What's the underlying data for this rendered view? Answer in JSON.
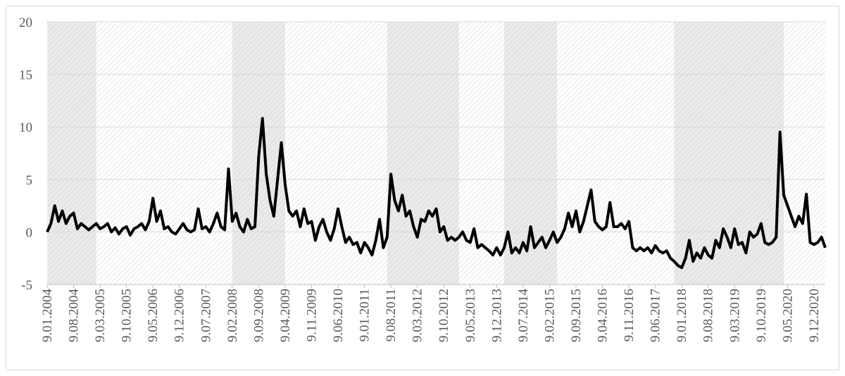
{
  "chart_data": {
    "type": "line",
    "x": [
      "9.01.2004",
      "9.02.2004",
      "9.03.2004",
      "9.04.2004",
      "9.05.2004",
      "9.06.2004",
      "9.07.2004",
      "9.08.2004",
      "9.09.2004",
      "9.10.2004",
      "9.11.2004",
      "9.12.2004",
      "9.01.2005",
      "9.02.2005",
      "9.03.2005",
      "9.04.2005",
      "9.05.2005",
      "9.06.2005",
      "9.07.2005",
      "9.08.2005",
      "9.09.2005",
      "9.10.2005",
      "9.11.2005",
      "9.12.2005",
      "9.01.2006",
      "9.02.2006",
      "9.03.2006",
      "9.04.2006",
      "9.05.2006",
      "9.06.2006",
      "9.07.2006",
      "9.08.2006",
      "9.09.2006",
      "9.10.2006",
      "9.11.2006",
      "9.12.2006",
      "9.01.2007",
      "9.02.2007",
      "9.03.2007",
      "9.04.2007",
      "9.05.2007",
      "9.06.2007",
      "9.07.2007",
      "9.08.2007",
      "9.09.2007",
      "9.10.2007",
      "9.11.2007",
      "9.12.2007",
      "9.01.2008",
      "9.02.2008",
      "9.03.2008",
      "9.04.2008",
      "9.05.2008",
      "9.06.2008",
      "9.07.2008",
      "9.08.2008",
      "9.09.2008",
      "9.10.2008",
      "9.11.2008",
      "9.12.2008",
      "9.01.2009",
      "9.02.2009",
      "9.03.2009",
      "9.04.2009",
      "9.05.2009",
      "9.06.2009",
      "9.07.2009",
      "9.08.2009",
      "9.09.2009",
      "9.10.2009",
      "9.11.2009",
      "9.12.2009",
      "9.01.2010",
      "9.02.2010",
      "9.03.2010",
      "9.04.2010",
      "9.05.2010",
      "9.06.2010",
      "9.07.2010",
      "9.08.2010",
      "9.09.2010",
      "9.10.2010",
      "9.11.2010",
      "9.12.2010",
      "9.01.2011",
      "9.02.2011",
      "9.03.2011",
      "9.04.2011",
      "9.05.2011",
      "9.06.2011",
      "9.07.2011",
      "9.08.2011",
      "9.09.2011",
      "9.10.2011",
      "9.11.2011",
      "9.12.2011",
      "9.01.2012",
      "9.02.2012",
      "9.03.2012",
      "9.04.2012",
      "9.05.2012",
      "9.06.2012",
      "9.07.2012",
      "9.08.2012",
      "9.09.2012",
      "9.10.2012",
      "9.11.2012",
      "9.12.2012",
      "9.01.2013",
      "9.02.2013",
      "9.03.2013",
      "9.04.2013",
      "9.05.2013",
      "9.06.2013",
      "9.07.2013",
      "9.08.2013",
      "9.09.2013",
      "9.10.2013",
      "9.11.2013",
      "9.12.2013",
      "9.01.2014",
      "9.02.2014",
      "9.03.2014",
      "9.04.2014",
      "9.05.2014",
      "9.06.2014",
      "9.07.2014",
      "9.08.2014",
      "9.09.2014",
      "9.10.2014",
      "9.11.2014",
      "9.12.2014",
      "9.01.2015",
      "9.02.2015",
      "9.03.2015",
      "9.04.2015",
      "9.05.2015",
      "9.06.2015",
      "9.07.2015",
      "9.08.2015",
      "9.09.2015",
      "9.10.2015",
      "9.11.2015",
      "9.12.2015",
      "9.01.2016",
      "9.02.2016",
      "9.03.2016",
      "9.04.2016",
      "9.05.2016",
      "9.06.2016",
      "9.07.2016",
      "9.08.2016",
      "9.09.2016",
      "9.10.2016",
      "9.11.2016",
      "9.12.2016",
      "9.01.2017",
      "9.02.2017",
      "9.03.2017",
      "9.04.2017",
      "9.05.2017",
      "9.06.2017",
      "9.07.2017",
      "9.08.2017",
      "9.09.2017",
      "9.10.2017",
      "9.11.2017",
      "9.12.2017",
      "9.01.2018",
      "9.02.2018",
      "9.03.2018",
      "9.04.2018",
      "9.05.2018",
      "9.06.2018",
      "9.07.2018",
      "9.08.2018",
      "9.09.2018",
      "9.10.2018",
      "9.11.2018",
      "9.12.2018",
      "9.01.2019",
      "9.02.2019",
      "9.03.2019",
      "9.04.2019",
      "9.05.2019",
      "9.06.2019",
      "9.07.2019",
      "9.08.2019",
      "9.09.2019",
      "9.10.2019",
      "9.11.2019",
      "9.12.2019",
      "9.01.2020",
      "9.02.2020",
      "9.03.2020",
      "9.04.2020",
      "9.05.2020",
      "9.06.2020",
      "9.07.2020",
      "9.08.2020",
      "9.09.2020",
      "9.10.2020",
      "9.11.2020",
      "9.12.2020",
      "9.01.2021",
      "9.02.2021",
      "9.03.2021"
    ],
    "series": [
      {
        "color": "#000000",
        "values": [
          0,
          0.8,
          2.5,
          1,
          2,
          0.8,
          1.5,
          1.8,
          0.3,
          0.8,
          0.5,
          0.2,
          0.5,
          0.8,
          0.3,
          0.5,
          0.8,
          0,
          0.4,
          -0.2,
          0.3,
          0.5,
          -0.3,
          0.3,
          0.5,
          0.8,
          0.2,
          1,
          3.2,
          1,
          2,
          0.3,
          0.5,
          0,
          -0.2,
          0.3,
          0.8,
          0.2,
          0,
          0.2,
          2.2,
          0.3,
          0.5,
          0,
          0.8,
          1.8,
          0.5,
          0.2,
          6,
          1,
          1.8,
          0.5,
          0,
          1.2,
          0.3,
          0.5,
          7.2,
          10.8,
          5.5,
          3,
          1.5,
          5,
          8.5,
          4.5,
          2,
          1.5,
          2,
          0.5,
          2.2,
          0.8,
          1,
          -0.8,
          0.5,
          1.2,
          0,
          -0.8,
          0.3,
          2.2,
          0.5,
          -1,
          -0.5,
          -1.2,
          -1,
          -2,
          -1,
          -1.5,
          -2.2,
          -0.8,
          1.2,
          -1.5,
          -0.5,
          5.5,
          3,
          2,
          3.5,
          1.5,
          2,
          0.5,
          -0.5,
          1.2,
          1,
          2,
          1.5,
          2.2,
          0,
          0.5,
          -0.8,
          -0.5,
          -0.8,
          -0.5,
          0,
          -0.8,
          -1,
          0.3,
          -1.5,
          -1.2,
          -1.5,
          -1.8,
          -2.2,
          -1.5,
          -2.2,
          -1.5,
          0,
          -2,
          -1.5,
          -2,
          -1,
          -1.8,
          0.5,
          -1.5,
          -1,
          -0.5,
          -1.5,
          -0.8,
          0,
          -1,
          -0.5,
          0.3,
          1.8,
          0.5,
          2,
          0,
          1,
          2.5,
          4,
          1,
          0.5,
          0.2,
          0.5,
          2.8,
          0.5,
          0.5,
          0.8,
          0.3,
          1,
          -1.5,
          -1.8,
          -1.5,
          -1.8,
          -1.5,
          -2,
          -1.3,
          -1.8,
          -2,
          -1.8,
          -2.5,
          -2.8,
          -3.2,
          -3.4,
          -2.5,
          -0.8,
          -2.8,
          -2,
          -2.5,
          -1.5,
          -2.2,
          -2.5,
          -0.8,
          -1.5,
          0.3,
          -0.5,
          -1.5,
          0.3,
          -1.2,
          -1,
          -2,
          0,
          -0.5,
          -0.2,
          0.8,
          -1,
          -1.2,
          -1,
          -0.5,
          9.5,
          3.5,
          2.5,
          1.5,
          0.5,
          1.5,
          0.8,
          3.6,
          -1,
          -1.2,
          -1,
          -0.5,
          -1.5
        ]
      }
    ],
    "bands": [
      [
        "9.01.2004",
        "9.02.2005"
      ],
      [
        "9.02.2008",
        "9.04.2009"
      ],
      [
        "9.07.2011",
        "9.02.2013"
      ],
      [
        "9.02.2014",
        "9.04.2015"
      ],
      [
        "9.11.2017",
        "9.04.2020"
      ]
    ],
    "xlim": [
      "9.01.2004",
      "9.03.2021"
    ],
    "xticks": [
      "9.01.2004",
      "9.08.2004",
      "9.03.2005",
      "9.10.2005",
      "9.05.2006",
      "9.12.2006",
      "9.07.2007",
      "9.02.2008",
      "9.09.2008",
      "9.04.2009",
      "9.11.2009",
      "9.06.2010",
      "9.01.2011",
      "9.08.2011",
      "9.03.2012",
      "9.10.2012",
      "9.05.2013",
      "9.12.2013",
      "9.07.2014",
      "9.02.2015",
      "9.09.2015",
      "9.04.2016",
      "9.11.2016",
      "9.06.2017",
      "9.01.2018",
      "9.08.2018",
      "9.03.2019",
      "9.10.2019",
      "9.05.2020",
      "9.12.2020"
    ],
    "ylim": [
      -5,
      20
    ],
    "yticks": [
      -5,
      0,
      5,
      10,
      15,
      20
    ],
    "grid": true
  }
}
